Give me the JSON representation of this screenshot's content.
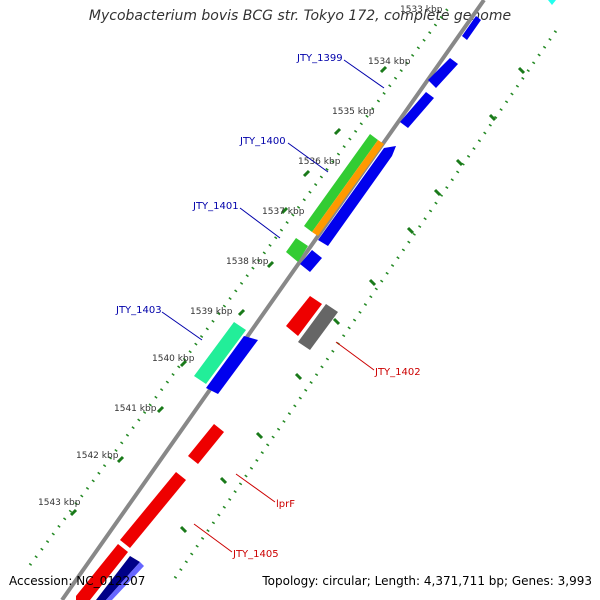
{
  "title": "Mycobacterium bovis BCG str. Tokyo 172, complete genome",
  "accession": "Accession: NC_012207",
  "summary": "Topology: circular; Length: 4,371,711 bp; Genes: 3,993",
  "kbp_labels": [
    "1533 kbp",
    "1534 kbp",
    "1535 kbp",
    "1536 kbp",
    "1537 kbp",
    "1538 kbp",
    "1539 kbp",
    "1540 kbp",
    "1541 kbp",
    "1542 kbp",
    "1543 kbp"
  ],
  "gene_labels": {
    "forward": [
      "JTY_1399",
      "JTY_1400",
      "JTY_1401",
      "JTY_1403"
    ],
    "reverse": [
      "JTY_1402",
      "lprF",
      "JTY_1405"
    ]
  },
  "colors": {
    "forward_label": "#0000aa",
    "reverse_label": "#cc0000",
    "cds_blue": "#0000ee",
    "cds_red": "#ee0000",
    "cds_green": "#33cc33",
    "cds_orange": "#ff9900",
    "cds_teal": "#22ee99",
    "cds_gray": "#666666",
    "cds_navy": "#000088",
    "backbone": "#888888",
    "dots": "#228822"
  }
}
